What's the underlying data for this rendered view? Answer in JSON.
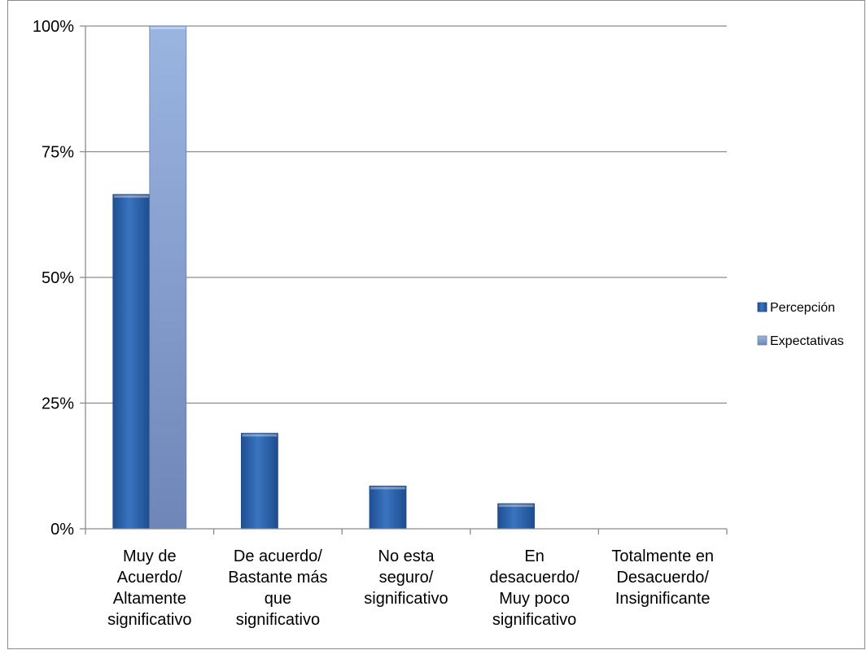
{
  "chart_data": {
    "type": "bar",
    "title": "",
    "xlabel": "",
    "ylabel": "",
    "categories": [
      [
        "Muy de",
        "Acuerdo/",
        "Altamente",
        "significativo"
      ],
      [
        "De acuerdo/",
        "Bastante más",
        "que",
        "significativo"
      ],
      [
        "No esta",
        "seguro/",
        "significativo"
      ],
      [
        "En",
        "desacuerdo/",
        "Muy poco",
        "significativo"
      ],
      [
        "Totalmente en",
        "Desacuerdo/",
        "Insignificante"
      ]
    ],
    "series": [
      {
        "name": "Percepción",
        "values": [
          0.665,
          0.19,
          0.085,
          0.05,
          0.0
        ],
        "color": "#2f65ae"
      },
      {
        "name": "Expectativas",
        "values": [
          1.0,
          0.0,
          0.0,
          0.0,
          0.0
        ],
        "color": "#87a3d3"
      }
    ],
    "ylim": [
      0,
      1
    ],
    "yticks": [
      0,
      0.25,
      0.5,
      0.75,
      1.0
    ],
    "ytick_labels": [
      "0%",
      "25%",
      "50%",
      "75%",
      "100%"
    ],
    "grid": true,
    "legend_position": "right"
  }
}
